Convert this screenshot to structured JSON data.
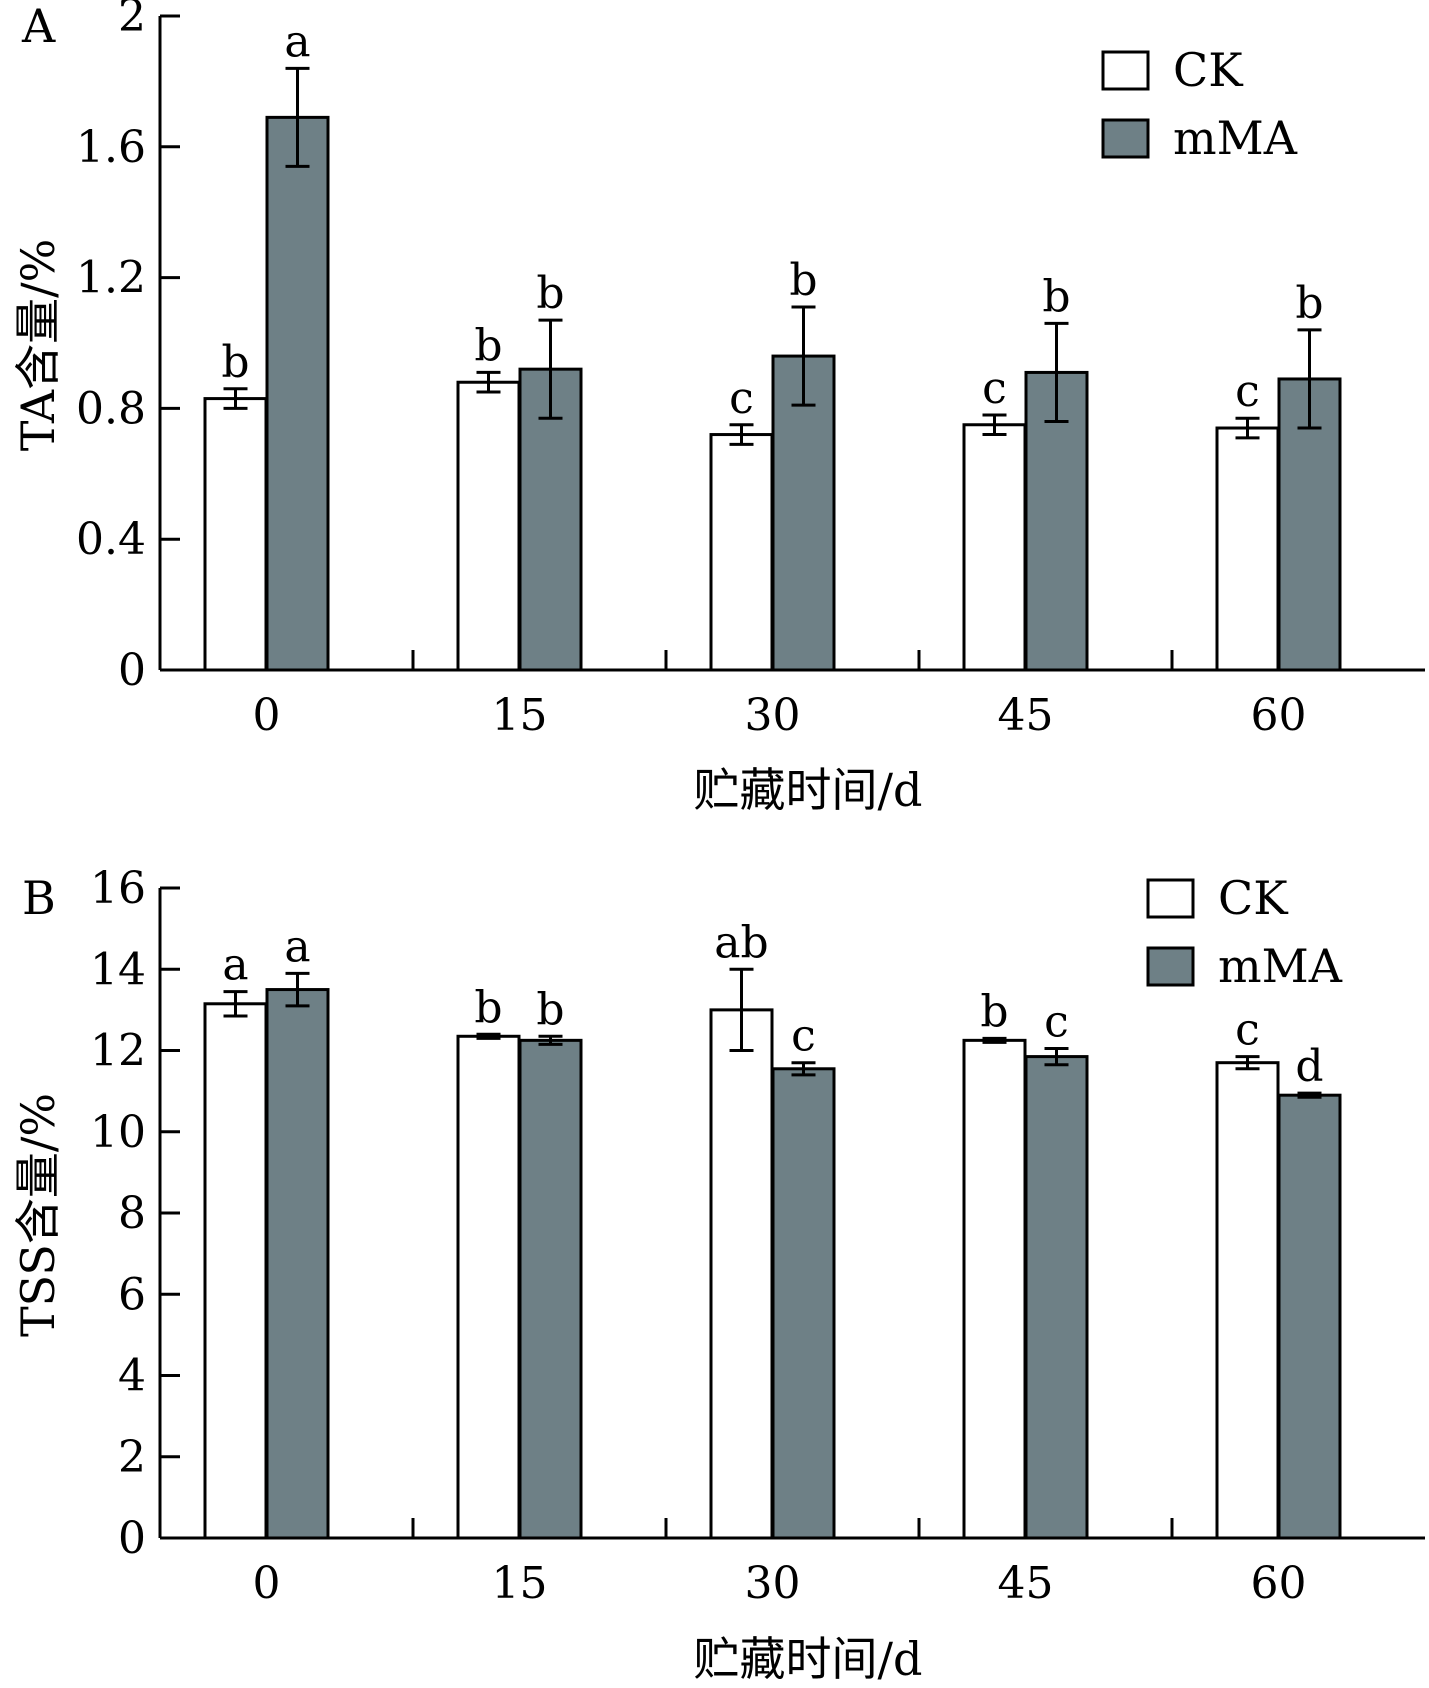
{
  "series_style": {
    "CK": {
      "fill": "#ffffff",
      "stroke": "#000000"
    },
    "mMA": {
      "fill": "#6e8086",
      "stroke": "#000000"
    }
  },
  "chart_data": [
    {
      "type": "bar",
      "panel": "A",
      "categories": [
        "0",
        "15",
        "30",
        "45",
        "60"
      ],
      "xlabel": "贮藏时间/d",
      "ylabel": "TA含量/%",
      "ylim": [
        0,
        2
      ],
      "yticks": [
        "0",
        "0.4",
        "0.8",
        "1.2",
        "1.6",
        "2"
      ],
      "legend": "top-right",
      "series": [
        {
          "name": "CK",
          "values": [
            0.83,
            0.88,
            0.72,
            0.75,
            0.74
          ],
          "errors": [
            0.03,
            0.03,
            0.03,
            0.03,
            0.03
          ],
          "labels": [
            "b",
            "b",
            "c",
            "c",
            "c"
          ]
        },
        {
          "name": "mMA",
          "values": [
            1.69,
            0.92,
            0.96,
            0.91,
            0.89
          ],
          "errors": [
            0.15,
            0.15,
            0.15,
            0.15,
            0.15
          ],
          "labels": [
            "a",
            "b",
            "b",
            "b",
            "b"
          ]
        }
      ]
    },
    {
      "type": "bar",
      "panel": "B",
      "categories": [
        "0",
        "15",
        "30",
        "45",
        "60"
      ],
      "xlabel": "贮藏时间/d",
      "ylabel": "TSS含量/%",
      "ylim": [
        0,
        16
      ],
      "yticks": [
        "0",
        "2",
        "4",
        "6",
        "8",
        "10",
        "12",
        "14",
        "16"
      ],
      "legend": "top-right",
      "series": [
        {
          "name": "CK",
          "values": [
            13.15,
            12.35,
            13.0,
            12.25,
            11.7
          ],
          "errors": [
            0.3,
            0.05,
            1.0,
            0.05,
            0.15
          ],
          "labels": [
            "a",
            "b",
            "ab",
            "b",
            "c"
          ]
        },
        {
          "name": "mMA",
          "values": [
            13.5,
            12.25,
            11.55,
            11.85,
            10.9
          ],
          "errors": [
            0.4,
            0.1,
            0.15,
            0.2,
            0.05
          ],
          "labels": [
            "a",
            "b",
            "c",
            "c",
            "d"
          ]
        }
      ]
    }
  ]
}
